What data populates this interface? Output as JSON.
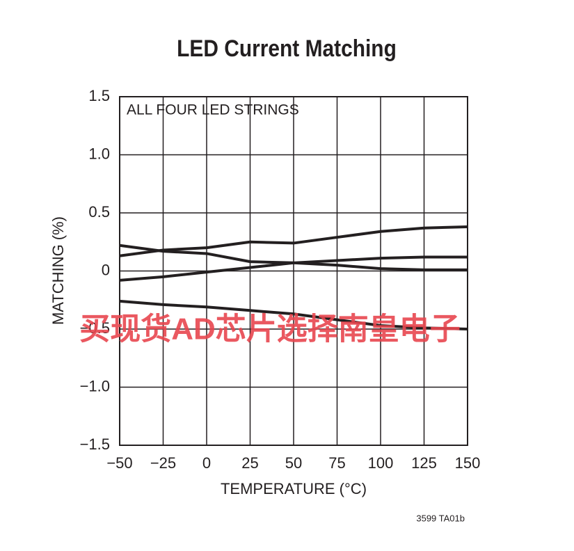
{
  "chart_data": {
    "type": "line",
    "title": "LED Current Matching",
    "annotation": "ALL FOUR LED STRINGS",
    "x_label": "TEMPERATURE (°C)",
    "y_label": "MATCHING (%)",
    "figure_ref": "3599 TA01b",
    "watermark": "买现货AD芯片选择南皇电子",
    "x": [
      -50,
      -25,
      0,
      25,
      50,
      75,
      100,
      125,
      150
    ],
    "series": [
      {
        "color": "#231f20",
        "values": [
          0.13,
          0.18,
          0.2,
          0.25,
          0.24,
          0.29,
          0.34,
          0.37,
          0.38
        ]
      },
      {
        "color": "#231f20",
        "values": [
          0.22,
          0.17,
          0.15,
          0.08,
          0.07,
          0.05,
          0.02,
          0.01,
          0.01
        ]
      },
      {
        "color": "#231f20",
        "values": [
          -0.08,
          -0.05,
          -0.01,
          0.03,
          0.07,
          0.09,
          0.11,
          0.12,
          0.12
        ]
      },
      {
        "color": "#231f20",
        "values": [
          -0.26,
          -0.29,
          -0.31,
          -0.34,
          -0.37,
          -0.42,
          -0.47,
          -0.49,
          -0.5
        ]
      }
    ],
    "xlim": [
      -50,
      150
    ],
    "xticks": [
      {
        "value": -50,
        "label": "−50"
      },
      {
        "value": -25,
        "label": "−25"
      },
      0,
      25,
      50,
      75,
      100,
      125,
      150
    ],
    "ylim": [
      -1.5,
      1.5
    ],
    "yticks": [
      {
        "value": -1.5,
        "label": "−1.5"
      },
      {
        "value": -1,
        "label": "−1.0"
      },
      {
        "value": -0.5,
        "label": "−0.5"
      },
      0,
      0.5,
      {
        "value": 1,
        "label": "1.0"
      },
      1.5
    ],
    "grid": true
  }
}
